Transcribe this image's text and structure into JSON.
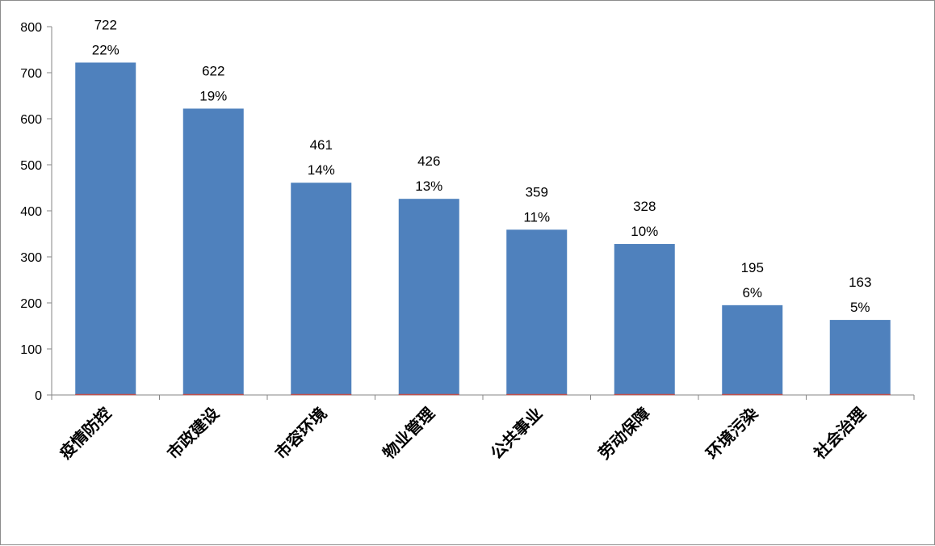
{
  "chart_data": {
    "type": "bar",
    "categories": [
      "疫情防控",
      "市政建设",
      "市容环境",
      "物业管理",
      "公共事业",
      "劳动保障",
      "环境污染",
      "社会治理"
    ],
    "values": [
      722,
      622,
      461,
      426,
      359,
      328,
      195,
      163
    ],
    "percent_labels": [
      "22%",
      "19%",
      "14%",
      "13%",
      "11%",
      "10%",
      "6%",
      "5%"
    ],
    "title": "",
    "xlabel": "",
    "ylabel": "",
    "ylim": [
      0,
      800
    ],
    "yticks": [
      0,
      100,
      200,
      300,
      400,
      500,
      600,
      700,
      800
    ],
    "grid": false,
    "legend": "none",
    "bar_color": "#4f81bd",
    "baseline_color": "#c0504d",
    "axis_color": "#868686"
  }
}
